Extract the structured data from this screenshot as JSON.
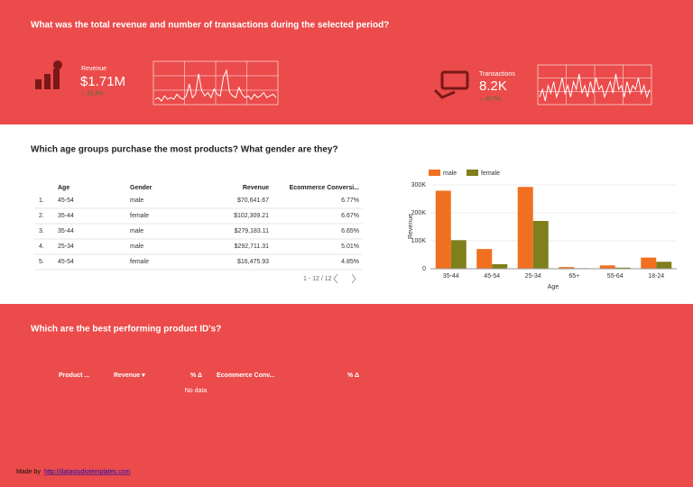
{
  "kpi_section": {
    "title": "What was the total revenue and number of transactions during the selected period?",
    "revenue": {
      "label": "Revenue",
      "value": "$1.71M",
      "change": "↓ -31.3%"
    },
    "transactions": {
      "label": "Transactions",
      "value": "8.2K",
      "change": "↓ -40.7%"
    }
  },
  "age_section": {
    "title": "Which age groups purchase the most products? What gender are they?",
    "table": {
      "headers": [
        "Age",
        "Gender",
        "Revenue",
        "Ecommerce Conversi..."
      ],
      "rows": [
        [
          "1.",
          "45-54",
          "male",
          "$70,641.67",
          "6.77%"
        ],
        [
          "2.",
          "35-44",
          "female",
          "$102,309.21",
          "6.67%"
        ],
        [
          "3.",
          "35-44",
          "male",
          "$279,183.11",
          "6.65%"
        ],
        [
          "4.",
          "25-34",
          "male",
          "$292,711.31",
          "5.01%"
        ],
        [
          "5.",
          "45-54",
          "female",
          "$16,475.93",
          "4.85%"
        ]
      ],
      "pagination": "1 - 12 / 12"
    }
  },
  "product_section": {
    "title": "Which are the best performing product ID's?",
    "table": {
      "headers": [
        "Product ...",
        "Revenue ▾",
        "% Δ",
        "Ecommerce Conv...",
        "% Δ"
      ],
      "empty": "No data"
    }
  },
  "footer": {
    "prefix": "Made by",
    "link": "http://datastudiotemplates.com"
  },
  "chart_data": [
    {
      "type": "line",
      "color": "#ffffff",
      "grid": true,
      "values": [
        3,
        4,
        2,
        5,
        3,
        4,
        3,
        6,
        4,
        3,
        5,
        12,
        4,
        6,
        18,
        8,
        5,
        7,
        4,
        9,
        6,
        5,
        16,
        20,
        7,
        5,
        4,
        10,
        6,
        4,
        5,
        3,
        6,
        4,
        5,
        7,
        4,
        5,
        6,
        4
      ]
    },
    {
      "type": "line",
      "color": "#ffffff",
      "grid": true,
      "values": [
        5,
        7,
        4,
        8,
        6,
        9,
        5,
        7,
        10,
        6,
        8,
        5,
        9,
        7,
        11,
        6,
        8,
        5,
        9,
        6,
        10,
        7,
        8,
        5,
        7,
        9,
        6,
        11,
        7,
        8,
        5,
        9,
        6,
        8,
        7,
        10,
        6,
        8,
        5,
        7
      ]
    },
    {
      "type": "bar",
      "x_label": "Age",
      "y_label": "Revenue",
      "legend": "top-left",
      "grid": true,
      "categories": [
        "35-44",
        "45-54",
        "25-34",
        "65+",
        "55-64",
        "18-24"
      ],
      "series": [
        {
          "name": "male",
          "color": "#f07020",
          "values": [
            279183.11,
            70641.67,
            292711.31,
            6000,
            12000,
            40000
          ]
        },
        {
          "name": "female",
          "color": "#7f7f1c",
          "values": [
            102309.21,
            16475.93,
            171000,
            2000,
            4000,
            25000
          ]
        }
      ],
      "ylim": [
        0,
        300000
      ],
      "yticks": [
        0,
        {
          "value": 100000,
          "label": "100K"
        },
        {
          "value": 200000,
          "label": "200K"
        },
        {
          "value": 300000,
          "label": "300K"
        }
      ]
    }
  ]
}
